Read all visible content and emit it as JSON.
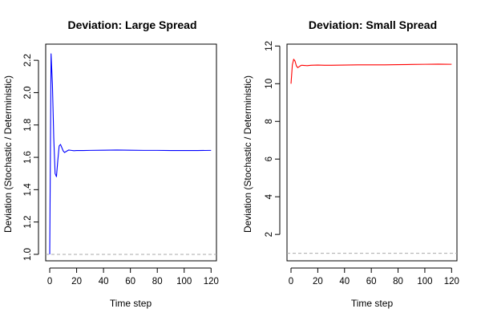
{
  "chart_data": [
    {
      "type": "line",
      "title": "Deviation: Large Spread",
      "xlabel": "Time step",
      "ylabel": "Deviation (Stochastic / Deterministic)",
      "xlim": [
        -3,
        124
      ],
      "ylim": [
        0.96,
        2.3
      ],
      "xticks": [
        0,
        20,
        40,
        60,
        80,
        100,
        120
      ],
      "yticks": [
        1.0,
        1.2,
        1.4,
        1.6,
        1.8,
        2.0,
        2.2
      ],
      "ytick_labels": [
        "1.0",
        "1.2",
        "1.4",
        "1.6",
        "1.8",
        "2.0",
        "2.2"
      ],
      "reference_line": {
        "y": 1.0,
        "style": "dashed",
        "color": "#aaaaaa"
      },
      "grid": false,
      "series": [
        {
          "color": "#0000ff",
          "x": [
            0,
            1,
            2,
            3,
            4,
            5,
            6,
            7,
            8,
            9,
            10,
            11,
            12,
            13,
            14,
            16,
            18,
            20,
            25,
            30,
            40,
            50,
            60,
            70,
            80,
            90,
            100,
            110,
            120
          ],
          "y": [
            1.0,
            2.24,
            2.05,
            1.72,
            1.5,
            1.48,
            1.58,
            1.67,
            1.68,
            1.66,
            1.64,
            1.63,
            1.635,
            1.64,
            1.645,
            1.643,
            1.641,
            1.642,
            1.642,
            1.643,
            1.644,
            1.645,
            1.644,
            1.643,
            1.643,
            1.642,
            1.642,
            1.642,
            1.643
          ]
        }
      ]
    },
    {
      "type": "line",
      "title": "Deviation: Small Spread",
      "xlabel": "Time step",
      "ylabel": "Deviation (Stochastic / Deterministic)",
      "xlim": [
        -3,
        124
      ],
      "ylim": [
        0.6,
        12.1
      ],
      "xticks": [
        0,
        20,
        40,
        60,
        80,
        100,
        120
      ],
      "yticks": [
        2,
        4,
        6,
        8,
        10,
        12
      ],
      "ytick_labels": [
        "2",
        "4",
        "6",
        "8",
        "10",
        "12"
      ],
      "reference_line": {
        "y": 1.0,
        "style": "dashed",
        "color": "#aaaaaa"
      },
      "grid": false,
      "series": [
        {
          "color": "#ff0000",
          "x": [
            0,
            1,
            2,
            3,
            4,
            5,
            6,
            7,
            8,
            10,
            12,
            15,
            20,
            25,
            30,
            40,
            50,
            60,
            70,
            80,
            90,
            100,
            110,
            120
          ],
          "y": [
            10.0,
            11.0,
            11.3,
            11.2,
            10.95,
            10.85,
            10.9,
            10.95,
            10.98,
            10.97,
            10.96,
            10.98,
            10.99,
            10.98,
            10.98,
            10.99,
            11.0,
            11.0,
            11.0,
            11.01,
            11.02,
            11.03,
            11.04,
            11.03
          ]
        }
      ]
    }
  ]
}
